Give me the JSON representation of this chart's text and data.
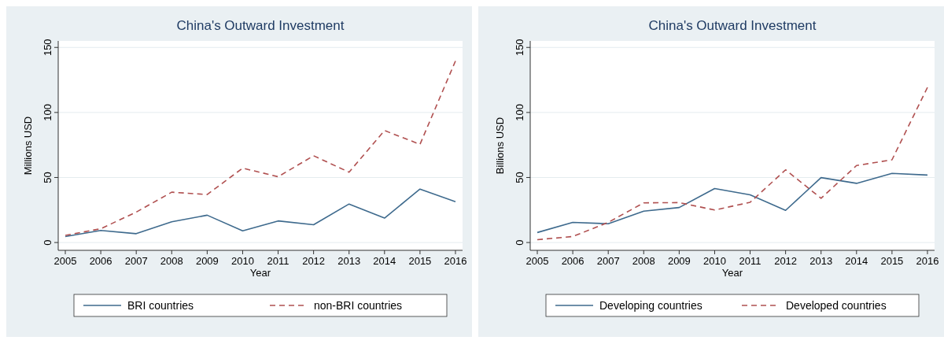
{
  "chart_data": [
    {
      "type": "line",
      "title": "China's Outward Investment",
      "xlabel": "Year",
      "ylabel": "Millions USD",
      "x": [
        2005,
        2006,
        2007,
        2008,
        2009,
        2010,
        2011,
        2012,
        2013,
        2014,
        2015,
        2016
      ],
      "xlim": [
        2004.8,
        2016.2
      ],
      "xticks": [
        2005,
        2006,
        2007,
        2008,
        2009,
        2010,
        2011,
        2012,
        2013,
        2014,
        2015,
        2016
      ],
      "ylim": [
        -6,
        155
      ],
      "yticks": [
        0,
        50,
        100,
        150
      ],
      "grid": "y",
      "legend": "bottom",
      "series": [
        {
          "name": "BRI countries",
          "color": "#3e6a8d",
          "line_style": "solid",
          "values": [
            4.6,
            9.3,
            6.8,
            15.9,
            21,
            9,
            16.6,
            13.7,
            29.6,
            18.8,
            41.1,
            31.4
          ]
        },
        {
          "name": "non-BRI countries",
          "color": "#b05050",
          "line_style": "dashed",
          "values": [
            5.5,
            10.6,
            23.4,
            38.7,
            36.9,
            57.2,
            50.6,
            66.7,
            54.1,
            86.1,
            75.5,
            139.6
          ]
        }
      ]
    },
    {
      "type": "line",
      "title": "China's Outward Investment",
      "xlabel": "Year",
      "ylabel": "Billions USD",
      "x": [
        2005,
        2006,
        2007,
        2008,
        2009,
        2010,
        2011,
        2012,
        2013,
        2014,
        2015,
        2016
      ],
      "xlim": [
        2004.8,
        2016.2
      ],
      "xticks": [
        2005,
        2006,
        2007,
        2008,
        2009,
        2010,
        2011,
        2012,
        2013,
        2014,
        2015,
        2016
      ],
      "ylim": [
        -6,
        155
      ],
      "yticks": [
        0,
        50,
        100,
        150
      ],
      "grid": "y",
      "legend": "bottom",
      "series": [
        {
          "name": "Developing countries",
          "color": "#3e6a8d",
          "line_style": "solid",
          "values": [
            7.7,
            15.5,
            14.4,
            24.1,
            26.9,
            41.5,
            36.7,
            24.7,
            49.9,
            45.5,
            53.2,
            51.9
          ]
        },
        {
          "name": "Developed countries",
          "color": "#b05050",
          "line_style": "dashed",
          "values": [
            2.2,
            4.6,
            15.5,
            30.5,
            30.7,
            25,
            30.9,
            55.9,
            34,
            59.2,
            63.6,
            119.3
          ]
        }
      ]
    }
  ]
}
